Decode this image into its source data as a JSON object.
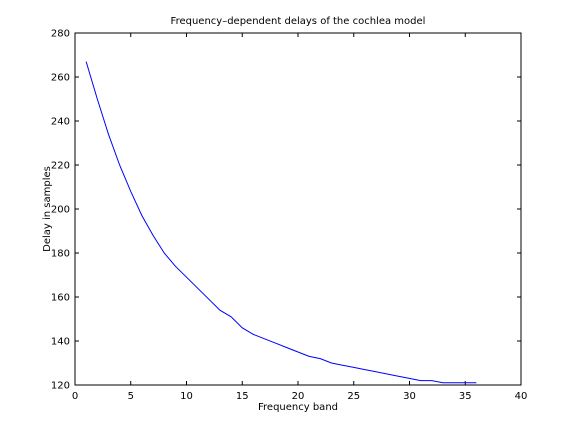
{
  "chart_data": {
    "type": "line",
    "title": "Frequency–dependent delays of the cochlea model",
    "xlabel": "Frequency band",
    "ylabel": "Delay in samples",
    "xlim": [
      0,
      40
    ],
    "ylim": [
      120,
      280
    ],
    "xticks": [
      0,
      5,
      10,
      15,
      20,
      25,
      30,
      35,
      40
    ],
    "yticks": [
      120,
      140,
      160,
      180,
      200,
      220,
      240,
      260,
      280
    ],
    "grid": false,
    "legend": "none",
    "series": [
      {
        "color": "#0000ff",
        "x": [
          1,
          2,
          3,
          4,
          5,
          6,
          7,
          8,
          9,
          10,
          11,
          12,
          13,
          14,
          15,
          16,
          17,
          18,
          19,
          20,
          21,
          22,
          23,
          24,
          25,
          26,
          27,
          28,
          29,
          30,
          31,
          32,
          33,
          34,
          35,
          36
        ],
        "y": [
          267,
          250,
          234,
          220,
          208,
          197,
          188,
          180,
          174,
          169,
          164,
          159,
          154,
          151,
          146,
          143,
          141,
          139,
          137,
          135,
          133,
          132,
          130,
          129,
          128,
          127,
          126,
          125,
          124,
          123,
          122,
          122,
          121,
          121,
          121,
          121
        ]
      }
    ]
  }
}
